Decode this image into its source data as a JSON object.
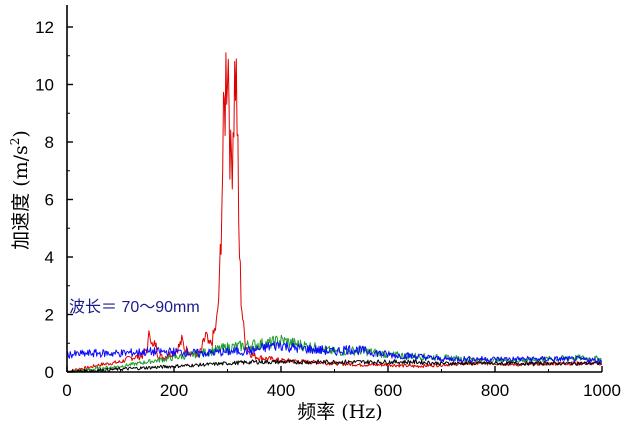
{
  "chart_data": {
    "type": "line",
    "title": "",
    "xlabel": "频率 (Hz)",
    "ylabel_parts": {
      "main": "加速度 (m/s",
      "sup": "2",
      "close": ")"
    },
    "xlim": [
      0,
      1000
    ],
    "ylim": [
      0,
      13
    ],
    "x_ticks": [
      0,
      200,
      400,
      600,
      800,
      1000
    ],
    "y_ticks": [
      0,
      2,
      4,
      6,
      8,
      10,
      12
    ],
    "grid": false,
    "legend": "none",
    "annotation": {
      "text": "波长＝ 70～90mm",
      "x": 0,
      "y": 2.3
    },
    "series": [
      {
        "color": "#e00000",
        "x": [
          0,
          20,
          40,
          60,
          80,
          100,
          120,
          140,
          150,
          155,
          160,
          165,
          170,
          180,
          200,
          210,
          215,
          220,
          230,
          240,
          250,
          260,
          265,
          270,
          280,
          285,
          290,
          295,
          300,
          303,
          306,
          309,
          312,
          315,
          318,
          321,
          325,
          330,
          335,
          340,
          350,
          360,
          380,
          400,
          450,
          500,
          550,
          600,
          650,
          700,
          750,
          800,
          850,
          900,
          950,
          1000
        ],
        "y": [
          0.0,
          0.1,
          0.15,
          0.25,
          0.3,
          0.35,
          0.5,
          0.55,
          0.8,
          1.5,
          0.8,
          1.0,
          0.6,
          0.5,
          0.7,
          0.9,
          1.1,
          0.8,
          0.7,
          0.6,
          0.7,
          1.3,
          0.9,
          1.0,
          1.7,
          3.0,
          6.5,
          9.5,
          11.5,
          10.0,
          7.0,
          8.0,
          9.5,
          10.7,
          9.0,
          5.0,
          2.8,
          1.5,
          0.9,
          0.7,
          0.55,
          0.5,
          0.45,
          0.4,
          0.35,
          0.3,
          0.25,
          0.25,
          0.2,
          0.25,
          0.3,
          0.3,
          0.25,
          0.3,
          0.3,
          0.3
        ]
      },
      {
        "color": "#1f9c2b",
        "x": [
          0,
          50,
          100,
          150,
          200,
          250,
          300,
          350,
          380,
          400,
          420,
          450,
          500,
          550,
          600,
          650,
          700,
          750,
          800,
          850,
          900,
          950,
          1000
        ],
        "y": [
          0.0,
          0.1,
          0.2,
          0.35,
          0.5,
          0.65,
          0.85,
          0.95,
          1.0,
          1.1,
          1.0,
          0.9,
          0.7,
          0.75,
          0.6,
          0.55,
          0.5,
          0.45,
          0.4,
          0.4,
          0.45,
          0.5,
          0.45
        ]
      },
      {
        "color": "#000000",
        "x": [
          0,
          50,
          100,
          150,
          200,
          250,
          300,
          350,
          400,
          450,
          500,
          550,
          600,
          650,
          700,
          750,
          800,
          850,
          900,
          950,
          1000
        ],
        "y": [
          0.0,
          0.05,
          0.1,
          0.15,
          0.2,
          0.25,
          0.3,
          0.35,
          0.35,
          0.35,
          0.35,
          0.35,
          0.35,
          0.35,
          0.3,
          0.3,
          0.3,
          0.3,
          0.3,
          0.3,
          0.3
        ]
      },
      {
        "color": "#0a0aff",
        "x": [
          0,
          50,
          100,
          150,
          200,
          250,
          300,
          350,
          380,
          400,
          420,
          450,
          480,
          500,
          520,
          550,
          600,
          650,
          700,
          750,
          800,
          850,
          900,
          950,
          1000
        ],
        "y": [
          0.6,
          0.65,
          0.65,
          0.7,
          0.7,
          0.65,
          0.7,
          0.75,
          0.9,
          0.95,
          0.85,
          0.8,
          0.75,
          0.7,
          0.8,
          0.75,
          0.6,
          0.55,
          0.45,
          0.45,
          0.45,
          0.45,
          0.45,
          0.45,
          0.4
        ]
      }
    ]
  }
}
